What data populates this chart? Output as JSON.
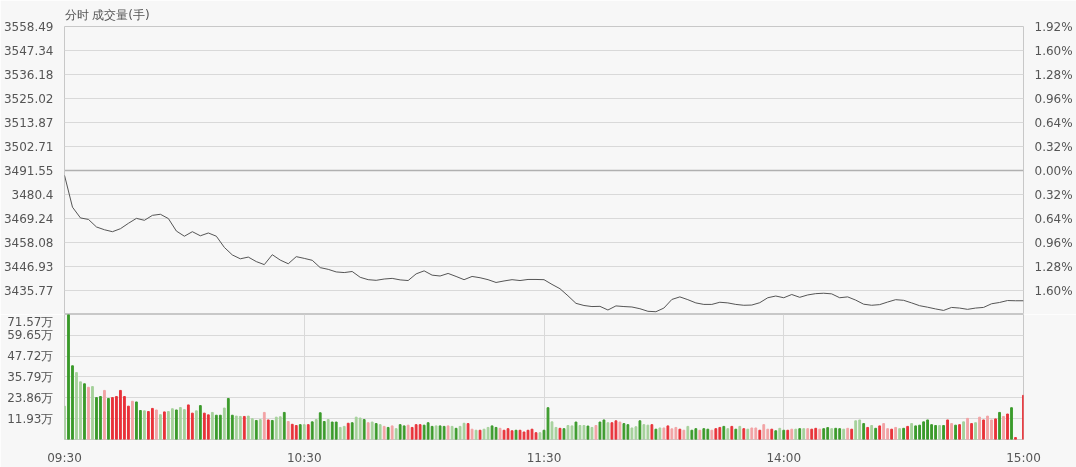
{
  "chart_data": [
    {
      "type": "line",
      "title": "分时  成交量(手)",
      "categories": [
        null,
        null,
        null,
        null,
        null,
        null,
        null,
        null,
        null,
        null,
        null,
        null,
        null,
        null,
        null,
        null,
        null,
        null,
        null,
        null,
        null,
        null,
        null,
        null,
        null,
        null,
        null,
        null,
        null,
        null,
        null,
        null,
        null,
        null,
        null,
        null,
        null,
        null,
        null,
        null,
        null,
        null,
        null,
        null,
        null,
        null,
        null,
        null,
        null,
        null,
        null,
        null,
        null,
        null,
        null,
        null,
        null,
        null,
        null,
        null,
        null,
        null,
        null,
        null,
        null,
        null,
        null,
        null,
        null,
        null,
        null,
        null,
        null,
        null,
        null,
        null,
        null,
        null,
        null,
        null,
        null,
        null,
        null,
        null,
        null,
        null,
        null,
        null,
        null,
        null,
        null,
        null,
        null,
        null,
        null,
        null,
        null,
        null,
        null,
        null,
        null,
        null,
        null,
        null,
        null,
        null,
        null,
        null,
        null,
        null,
        null,
        null,
        null,
        null,
        null,
        null,
        null,
        null,
        null,
        null,
        null
      ],
      "series": [
        {
          "type": "line",
          "color": "#555555",
          "axis": "y",
          "values": [
            3489.3,
            3474.5,
            3469.5,
            3468.8,
            3465.3,
            3464.0,
            3463.1,
            3464.5,
            3467.0,
            3469.3,
            3468.4,
            3470.7,
            3471.2,
            3469.2,
            3463.4,
            3461.0,
            3463.1,
            3461.2,
            3462.5,
            3461.0,
            3455.8,
            3452.3,
            3450.5,
            3451.3,
            3449.2,
            3447.8,
            3452.4,
            3449.9,
            3448.2,
            3451.5,
            3450.7,
            3449.8,
            3446.4,
            3445.6,
            3444.4,
            3444.1,
            3444.6,
            3441.9,
            3440.8,
            3440.5,
            3441.1,
            3441.4,
            3440.7,
            3440.4,
            3443.5,
            3444.9,
            3442.9,
            3442.5,
            3443.7,
            3442.3,
            3440.8,
            3442.3,
            3441.7,
            3440.8,
            3439.5,
            3440.2,
            3440.8,
            3440.4,
            3440.9,
            3440.9,
            3440.8,
            3438.6,
            3436.6,
            3433.3,
            3429.8,
            3428.8,
            3428.3,
            3428.4,
            3426.7,
            3428.6,
            3428.3,
            3428.1,
            3427.3,
            3426.1,
            3425.9,
            3427.6,
            3431.6,
            3432.8,
            3431.5,
            3430.0,
            3429.3,
            3429.3,
            3430.3,
            3430.0,
            3429.3,
            3428.9,
            3429.0,
            3430.1,
            3432.4,
            3433.2,
            3432.4,
            3433.9,
            3432.6,
            3433.7,
            3434.3,
            3434.5,
            3434.2,
            3432.4,
            3432.8,
            3431.3,
            3429.4,
            3428.9,
            3429.2,
            3430.4,
            3431.5,
            3431.2,
            3430.0,
            3428.7,
            3428.0,
            3427.2,
            3426.5,
            3427.9,
            3427.6,
            3427.0,
            3427.6,
            3427.9,
            3429.6,
            3430.2,
            3431.1,
            3431.0,
            3431.0
          ]
        }
      ],
      "ylim": [
        3424.61,
        3558.49
      ],
      "yticks": [
        3435.77,
        3446.93,
        3458.08,
        3469.24,
        3480.4,
        3491.55,
        3502.71,
        3513.87,
        3525.02,
        3536.18,
        3547.34,
        3558.49
      ],
      "y2lim": [
        -1.92,
        1.92
      ],
      "y2ticks": [
        {
          "value": -1.6,
          "label": "1.60%"
        },
        {
          "value": -1.28,
          "label": "1.28%"
        },
        {
          "value": -0.96,
          "label": "0.96%"
        },
        {
          "value": -0.64,
          "label": "0.64%"
        },
        {
          "value": -0.32,
          "label": "0.32%"
        },
        {
          "value": 0,
          "label": "0.00%"
        },
        {
          "value": 0.32,
          "label": "0.32%"
        },
        {
          "value": 0.64,
          "label": "0.64%"
        },
        {
          "value": 0.96,
          "label": "0.96%"
        },
        {
          "value": 1.28,
          "label": "1.28%"
        },
        {
          "value": 1.6,
          "label": "1.60%"
        },
        {
          "value": 1.92,
          "label": "1.92%"
        }
      ],
      "tick_labels": "y",
      "grid": true,
      "ref_lines": [
        {
          "axis": "y",
          "value": 3491.55,
          "color": "#b0b0b0"
        }
      ]
    },
    {
      "type": "bar",
      "categories": [
        "09:30",
        null,
        null,
        null,
        null,
        null,
        null,
        null,
        null,
        null,
        null,
        null,
        null,
        null,
        null,
        null,
        null,
        null,
        null,
        null,
        null,
        null,
        null,
        null,
        null,
        null,
        null,
        null,
        null,
        null,
        null,
        null,
        null,
        null,
        null,
        null,
        null,
        null,
        null,
        null,
        null,
        null,
        null,
        null,
        null,
        null,
        null,
        null,
        null,
        null,
        null,
        null,
        null,
        null,
        null,
        null,
        null,
        null,
        null,
        null,
        "10:30",
        null,
        null,
        null,
        null,
        null,
        null,
        null,
        null,
        null,
        null,
        null,
        null,
        null,
        null,
        null,
        null,
        null,
        null,
        null,
        null,
        null,
        null,
        null,
        null,
        null,
        null,
        null,
        null,
        null,
        null,
        null,
        null,
        null,
        null,
        null,
        null,
        null,
        null,
        null,
        null,
        null,
        null,
        null,
        null,
        null,
        null,
        null,
        null,
        null,
        null,
        null,
        null,
        null,
        null,
        null,
        null,
        null,
        null,
        null,
        "11:30",
        null,
        null,
        null,
        null,
        null,
        null,
        null,
        null,
        null,
        null,
        null,
        null,
        null,
        null,
        null,
        null,
        null,
        null,
        null,
        null,
        null,
        null,
        null,
        null,
        null,
        null,
        null,
        null,
        null,
        null,
        null,
        null,
        null,
        null,
        null,
        null,
        null,
        null,
        null,
        null,
        null,
        null,
        null,
        null,
        null,
        null,
        null,
        null,
        null,
        null,
        null,
        null,
        null,
        null,
        null,
        null,
        null,
        null,
        null,
        "14:00",
        null,
        null,
        null,
        null,
        null,
        null,
        null,
        null,
        null,
        null,
        null,
        null,
        null,
        null,
        null,
        null,
        null,
        null,
        null,
        null,
        null,
        null,
        null,
        null,
        null,
        null,
        null,
        null,
        null,
        null,
        null,
        null,
        null,
        null,
        null,
        null,
        null,
        null,
        null,
        null,
        null,
        null,
        null,
        null,
        null,
        null,
        null,
        null,
        null,
        null,
        null,
        null,
        null,
        null,
        null,
        null,
        null,
        null,
        null,
        "15:00"
      ],
      "values": [
        19.1,
        71.5,
        42.2,
        38.3,
        33.0,
        31.9,
        29.9,
        30.3,
        24.0,
        24.6,
        28.1,
        23.5,
        24.0,
        24.6,
        28.1,
        24.6,
        19.1,
        21.9,
        21.5,
        16.6,
        16.4,
        16.0,
        17.8,
        16.9,
        14.2,
        15.8,
        16.0,
        17.6,
        16.9,
        18.3,
        17.1,
        19.8,
        15.1,
        16.4,
        19.4,
        15.1,
        14.1,
        15.5,
        13.9,
        13.9,
        18.0,
        23.5,
        13.9,
        13.4,
        13.2,
        13.2,
        13.4,
        11.9,
        10.9,
        11.4,
        15.5,
        11.2,
        10.9,
        12.8,
        13.0,
        15.5,
        10.3,
        8.7,
        8.0,
        8.5,
        8.5,
        8.5,
        10.1,
        11.4,
        15.3,
        10.3,
        11.4,
        10.0,
        10.0,
        6.9,
        7.5,
        9.3,
        9.6,
        12.8,
        12.3,
        11.4,
        9.6,
        10.0,
        9.1,
        8.5,
        7.5,
        6.9,
        7.8,
        6.2,
        8.5,
        7.8,
        8.2,
        6.9,
        8.5,
        8.5,
        8.2,
        9.6,
        7.5,
        7.8,
        7.8,
        7.5,
        7.8,
        7.5,
        6.4,
        7.5,
        9.3,
        9.1,
        5.9,
        5.3,
        5.3,
        5.9,
        6.9,
        7.8,
        6.9,
        6.4,
        5.3,
        6.2,
        5.0,
        5.3,
        5.3,
        4.3,
        5.3,
        5.9,
        3.9,
        3.9,
        5.3,
        18.2,
        10.1,
        6.9,
        6.4,
        6.2,
        8.0,
        7.8,
        10.0,
        8.0,
        8.0,
        7.7,
        6.9,
        8.0,
        10.0,
        11.2,
        9.6,
        9.6,
        10.7,
        10.0,
        9.1,
        8.5,
        6.6,
        7.3,
        10.7,
        8.5,
        8.2,
        8.5,
        5.9,
        6.6,
        6.6,
        7.8,
        6.1,
        6.9,
        5.9,
        5.3,
        7.5,
        5.3,
        6.2,
        5.3,
        6.2,
        5.9,
        5.3,
        6.2,
        6.9,
        7.5,
        6.2,
        7.5,
        5.9,
        7.5,
        6.2,
        5.9,
        6.6,
        6.6,
        5.3,
        8.5,
        5.9,
        5.9,
        5.0,
        6.4,
        5.3,
        5.3,
        5.9,
        5.9,
        6.2,
        6.2,
        6.2,
        5.9,
        6.4,
        5.9,
        6.2,
        6.8,
        6.2,
        6.4,
        6.2,
        5.9,
        6.4,
        5.9,
        10.7,
        11.2,
        9.1,
        6.9,
        8.0,
        6.4,
        7.8,
        9.1,
        6.2,
        5.9,
        6.9,
        6.2,
        6.4,
        7.5,
        9.1,
        7.8,
        8.2,
        10.1,
        11.2,
        8.5,
        8.0,
        8.0,
        8.0,
        11.2,
        9.1,
        8.2,
        8.5,
        10.1,
        12.1,
        9.1,
        9.6,
        12.8,
        11.2,
        13.4,
        11.2,
        11.8,
        15.5,
        13.2,
        14.6,
        18.2,
        1.1,
        null,
        25.3
      ],
      "colors": [
        "#a5d19b",
        "#3c9b2c",
        "#3c9b2c",
        "#a5d19b",
        "#a5d19b",
        "#3c9b2c",
        "#f2a3a5",
        "#a5d19b",
        "#3c9b2c",
        "#3c9b2c",
        "#f2a3a5",
        "#3c9b2c",
        "#e8333a",
        "#e8333a",
        "#e8333a",
        "#e8333a",
        "#e8333a",
        "#f2a3a5",
        "#3c9b2c",
        "#3c9b2c",
        "#a5d19b",
        "#e8333a",
        "#e8333a",
        "#f2a3a5",
        "#a5d19b",
        "#e8333a",
        "#a5d19b",
        "#a5d19b",
        "#3c9b2c",
        "#a5d19b",
        "#a5d19b",
        "#e8333a",
        "#e8333a",
        "#a5d19b",
        "#3c9b2c",
        "#e8333a",
        "#e8333a",
        "#a5d19b",
        "#3c9b2c",
        "#3c9b2c",
        "#a5d19b",
        "#3c9b2c",
        "#3c9b2c",
        "#a5d19b",
        "#a5d19b",
        "#e8333a",
        "#a5d19b",
        "#a5d19b",
        "#3c9b2c",
        "#a5d19b",
        "#f2a3a5",
        "#e8333a",
        "#3c9b2c",
        "#a5d19b",
        "#a5d19b",
        "#3c9b2c",
        "#f2a3a5",
        "#e8333a",
        "#e8333a",
        "#3c9b2c",
        "#a5d19b",
        "#e8333a",
        "#3c9b2c",
        "#a5d19b",
        "#3c9b2c",
        "#3c9b2c",
        "#a5d19b",
        "#3c9b2c",
        "#3c9b2c",
        "#a5d19b",
        "#a5d19b",
        "#e8333a",
        "#3c9b2c",
        "#a5d19b",
        "#a5d19b",
        "#3c9b2c",
        "#f2a3a5",
        "#a5d19b",
        "#3c9b2c",
        "#a5d19b",
        "#f2a3a5",
        "#3c9b2c",
        "#f2a3a5",
        "#a5d19b",
        "#3c9b2c",
        "#3c9b2c",
        "#f2a3a5",
        "#e8333a",
        "#e8333a",
        "#e8333a",
        "#3c9b2c",
        "#3c9b2c",
        "#3c9b2c",
        "#a5d19b",
        "#3c9b2c",
        "#3c9b2c",
        "#f2a3a5",
        "#a5d19b",
        "#3c9b2c",
        "#a5d19b",
        "#a5d19b",
        "#e8333a",
        "#f2a3a5",
        "#a5d19b",
        "#e8333a",
        "#a5d19b",
        "#a5d19b",
        "#3c9b2c",
        "#3c9b2c",
        "#f2a3a5",
        "#e8333a",
        "#e8333a",
        "#e8333a",
        "#3c9b2c",
        "#e8333a",
        "#e8333a",
        "#e8333a",
        "#e8333a",
        "#e8333a",
        "#a5d19b",
        "#3c9b2c",
        "#3c9b2c",
        "#a5d19b",
        "#a5d19b",
        "#e8333a",
        "#3c9b2c",
        "#a5d19b",
        "#a5d19b",
        "#3c9b2c",
        "#a5d19b",
        "#a5d19b",
        "#3c9b2c",
        "#a5d19b",
        "#f2a3a5",
        "#3c9b2c",
        "#3c9b2c",
        "#a5d19b",
        "#e8333a",
        "#e8333a",
        "#f2a3a5",
        "#3c9b2c",
        "#3c9b2c",
        "#a5d19b",
        "#a5d19b",
        "#3c9b2c",
        "#a5d19b",
        "#a5d19b",
        "#e8333a",
        "#3c9b2c",
        "#a5d19b",
        "#f2a3a5",
        "#e8333a",
        "#f2a3a5",
        "#f2a3a5",
        "#e8333a",
        "#f2a3a5",
        "#a5d19b",
        "#3c9b2c",
        "#3c9b2c",
        "#f2a3a5",
        "#3c9b2c",
        "#3c9b2c",
        "#f2a3a5",
        "#e8333a",
        "#e8333a",
        "#3c9b2c",
        "#a5d19b",
        "#e8333a",
        "#3c9b2c",
        "#a5d19b",
        "#e8333a",
        "#a5d19b",
        "#f2a3a5",
        "#f2a3a5",
        "#e8333a",
        "#f2a3a5",
        "#f2a3a5",
        "#e8333a",
        "#3c9b2c",
        "#a5d19b",
        "#3c9b2c",
        "#e8333a",
        "#f2a3a5",
        "#a5d19b",
        "#3c9b2c",
        "#a5d19b",
        "#f2a3a5",
        "#e8333a",
        "#e8333a",
        "#f2a3a5",
        "#3c9b2c",
        "#3c9b2c",
        "#a5d19b",
        "#3c9b2c",
        "#3c9b2c",
        "#a5d19b",
        "#f2a3a5",
        "#e8333a",
        "#a5d19b",
        "#a5d19b",
        "#3c9b2c",
        "#e8333a",
        "#a5d19b",
        "#3c9b2c",
        "#e8333a",
        "#f2a3a5",
        "#f2a3a5",
        "#e8333a",
        "#f2a3a5",
        "#a5d19b",
        "#3c9b2c",
        "#e8333a",
        "#a5d19b",
        "#3c9b2c",
        "#3c9b2c",
        "#3c9b2c",
        "#3c9b2c",
        "#3c9b2c",
        "#3c9b2c",
        "#a5d19b",
        "#3c9b2c",
        "#e8333a",
        "#f2a3a5",
        "#3c9b2c",
        "#e8333a",
        "#a5d19b",
        "#f2a3a5",
        "#e8333a",
        "#a5d19b",
        "#f2a3a5",
        "#e8333a",
        "#f2a3a5",
        "#f2a3a5",
        "#e8333a",
        "#3c9b2c",
        "#f2a3a5",
        "#e8333a",
        "#3c9b2c",
        "#e8333a",
        "#e8333a",
        "#e8333a"
      ],
      "ylim": [
        0,
        71.57
      ],
      "yticks": [
        {
          "value": 11.93,
          "label": "11.93万"
        },
        {
          "value": 23.86,
          "label": "23.86万"
        },
        {
          "value": 35.79,
          "label": "35.79万"
        },
        {
          "value": 47.72,
          "label": "47.72万"
        },
        {
          "value": 59.65,
          "label": "59.65万"
        },
        {
          "value": 71.57,
          "label": "71.57万"
        }
      ],
      "grid": true
    }
  ]
}
